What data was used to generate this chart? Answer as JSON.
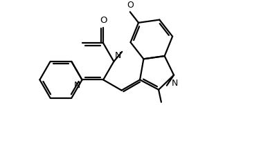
{
  "bg_color": "#ffffff",
  "line_color": "#000000",
  "lw": 1.6,
  "fs": 8.5,
  "figsize": [
    3.9,
    2.17
  ],
  "dpi": 100,
  "xlim": [
    -0.5,
    10.5
  ],
  "ylim": [
    -0.3,
    6.3
  ]
}
